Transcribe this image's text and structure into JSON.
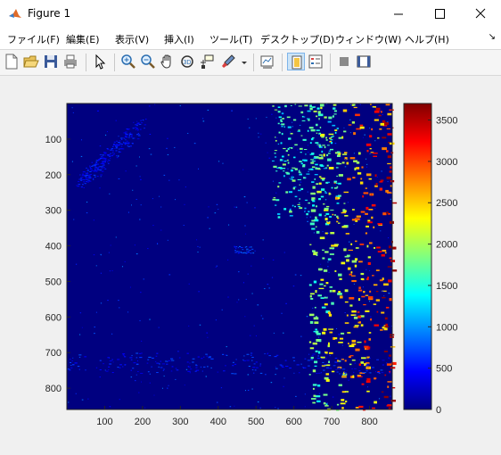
{
  "window": {
    "title": "Figure 1"
  },
  "menu": {
    "items": [
      "ファイル(F)",
      "編集(E)",
      "表示(V)",
      "挿入(I)",
      "ツール(T)",
      "デスクトップ(D)",
      "ウィンドウ(W)",
      "ヘルプ(H)"
    ]
  },
  "toolbar": {
    "buttons": [
      "new-figure",
      "open-file",
      "save",
      "print",
      "select-pointer",
      "zoom-in",
      "zoom-out",
      "pan",
      "rotate-3d",
      "data-cursor",
      "brush",
      "link-plot",
      "insert-colorbar",
      "insert-legend",
      "hide-plot-tools",
      "show-plot-tools"
    ]
  },
  "chart_data": {
    "type": "heatmap",
    "title": "",
    "xlabel": "",
    "ylabel": "",
    "xlim": [
      0,
      860
    ],
    "ylim": [
      860,
      0
    ],
    "x_ticks": [
      100,
      200,
      300,
      400,
      500,
      600,
      700,
      800
    ],
    "y_ticks": [
      100,
      200,
      300,
      400,
      500,
      600,
      700,
      800
    ],
    "colormap": "jet",
    "colorbar": {
      "min": 0,
      "max": 3700,
      "ticks": [
        0,
        500,
        1000,
        1500,
        2000,
        2500,
        3000,
        3500
      ]
    },
    "background_value": 0
  }
}
